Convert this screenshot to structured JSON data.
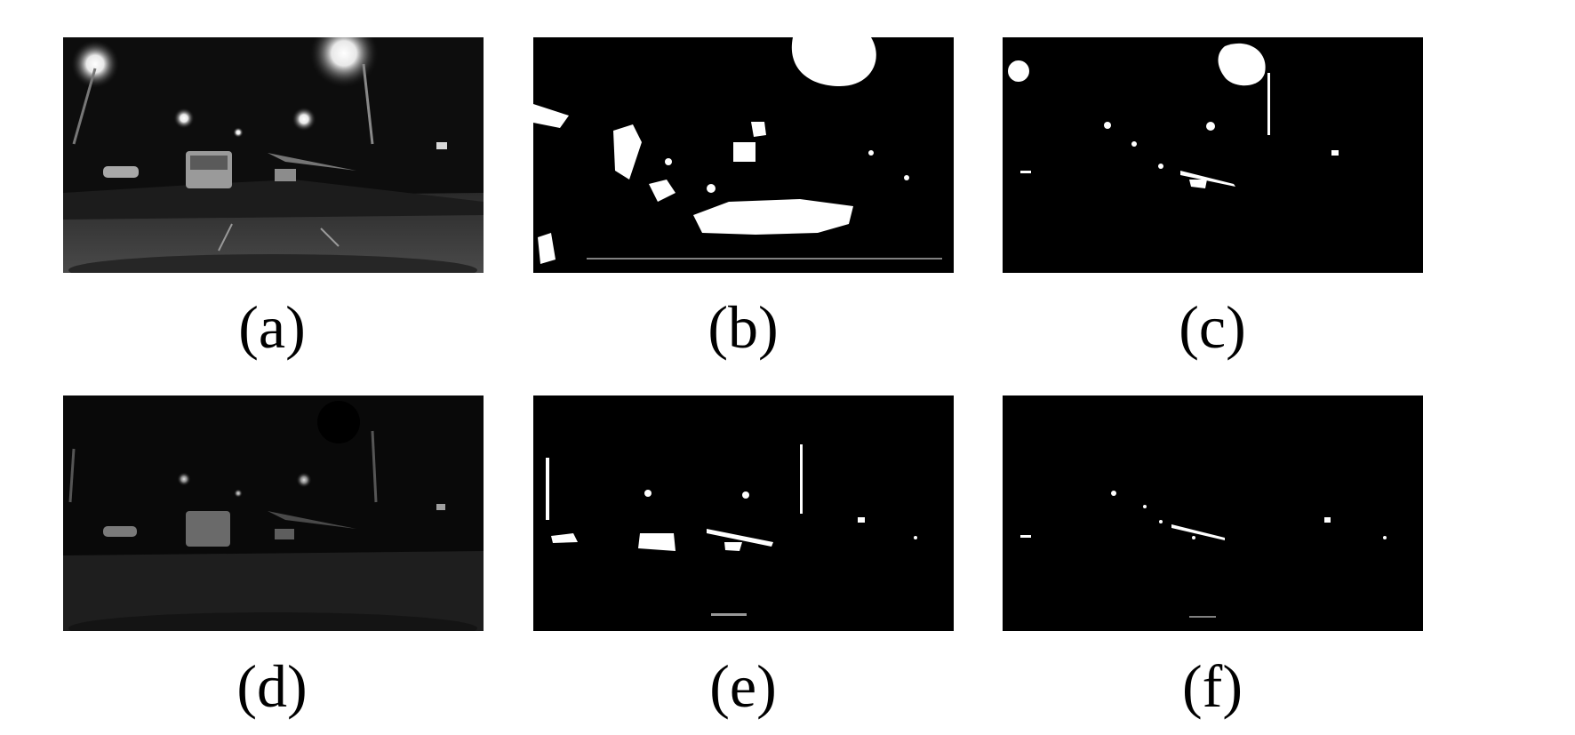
{
  "panels": [
    {
      "id": "a",
      "label": "(a)",
      "kind": "night-driving-photo"
    },
    {
      "id": "b",
      "label": "(b)",
      "kind": "binary-light-mask"
    },
    {
      "id": "c",
      "label": "(c)",
      "kind": "binary-light-mask"
    },
    {
      "id": "d",
      "label": "(d)",
      "kind": "darkened-photo"
    },
    {
      "id": "e",
      "label": "(e)",
      "kind": "binary-light-mask"
    },
    {
      "id": "f",
      "label": "(f)",
      "kind": "binary-light-mask"
    }
  ],
  "colors": {
    "background": "#ffffff",
    "panel": "#000000",
    "light": "#ffffff"
  }
}
